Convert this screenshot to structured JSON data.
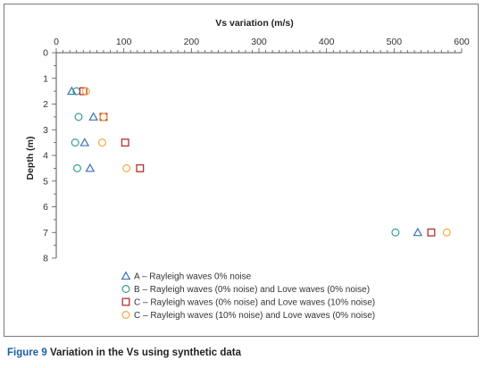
{
  "caption": {
    "label": "Figure 9",
    "text": "Variation in the Vs using synthetic data"
  },
  "chart_data": {
    "type": "scatter",
    "title": "Vs variation (m/s)",
    "xlabel": "",
    "ylabel": "Depth (m)",
    "xlim": [
      0,
      600
    ],
    "ylim": [
      0,
      8
    ],
    "x_ticks": [
      0,
      100,
      200,
      300,
      400,
      500,
      600
    ],
    "y_ticks": [
      0,
      1,
      2,
      3,
      4,
      5,
      6,
      7,
      8
    ],
    "x_axis_position": "top",
    "y_inverted": true,
    "grid": false,
    "legend_position": "bottom",
    "series": [
      {
        "name": "A – Rayleigh waves 0% noise",
        "marker": "triangle",
        "color": "#3a72b5",
        "points": [
          [
            23,
            1.5
          ],
          [
            55,
            2.5
          ],
          [
            42,
            3.5
          ],
          [
            50,
            4.5
          ],
          [
            535,
            7
          ]
        ]
      },
      {
        "name": "B – Rayleigh waves (0% noise) and Love waves (0% noise)",
        "marker": "circle",
        "color": "#2e9f8c",
        "points": [
          [
            30,
            1.5
          ],
          [
            33,
            2.5
          ],
          [
            28,
            3.5
          ],
          [
            31,
            4.5
          ],
          [
            502,
            7
          ]
        ]
      },
      {
        "name": "C – Rayleigh waves (0% noise) and Love waves (10% noise)",
        "marker": "square",
        "color": "#b23030",
        "points": [
          [
            40,
            1.5
          ],
          [
            70,
            2.5
          ],
          [
            102,
            3.5
          ],
          [
            124,
            4.5
          ],
          [
            555,
            7
          ]
        ]
      },
      {
        "name": "C – Rayleigh waves (10% noise) and Love waves (0% noise)",
        "marker": "circle",
        "color": "#f2a93b",
        "points": [
          [
            44,
            1.5
          ],
          [
            70,
            2.5
          ],
          [
            68,
            3.5
          ],
          [
            104,
            4.5
          ],
          [
            578,
            7
          ]
        ]
      }
    ]
  }
}
